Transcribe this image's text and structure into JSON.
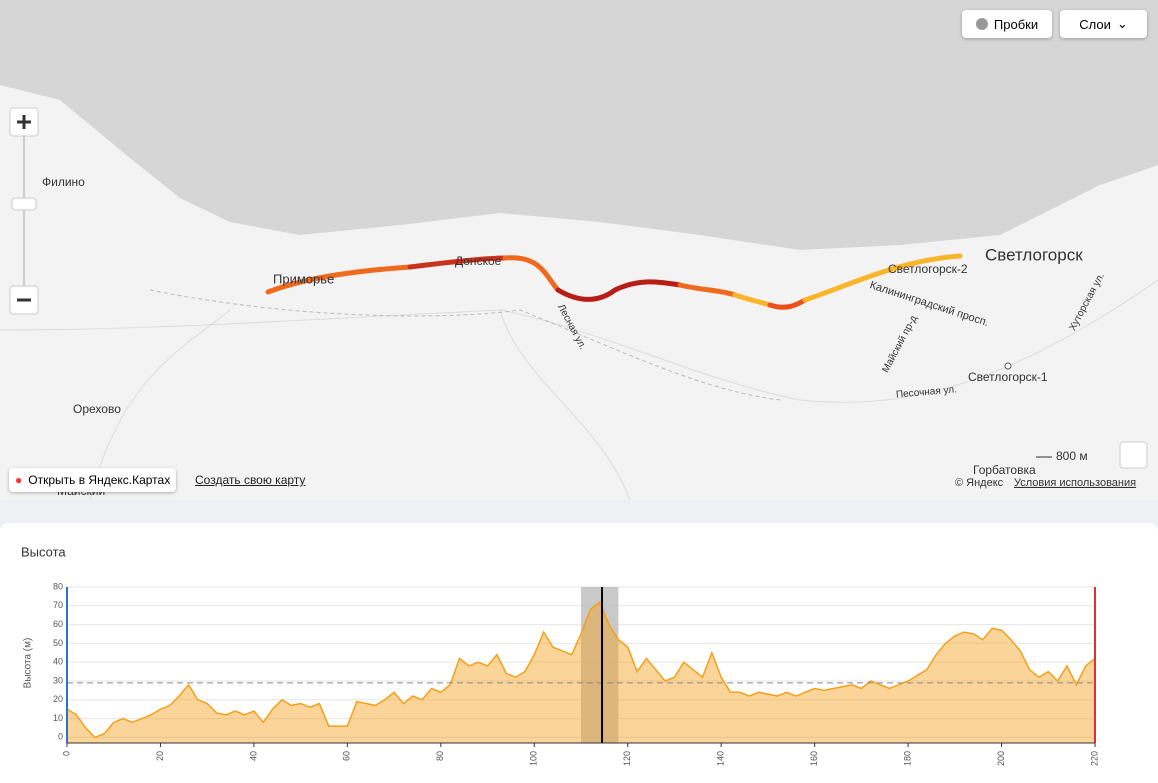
{
  "map": {
    "buttons": {
      "traffic": "Пробки",
      "layers": "Слои"
    },
    "labels": [
      "Филино",
      "Приморье",
      "Донское",
      "Орехово",
      "Майский",
      "Лесная ул.",
      "Светлогорск",
      "Светлогорск-2",
      "Калининградский просп.",
      "Майский пр-д",
      "Хуторская ул.",
      "Светлогорск-1",
      "Песочная ул.",
      "Горбатовка"
    ],
    "scale": "800 м",
    "open_link": "Открыть в Яндекс.Картах",
    "create_map": "Создать свою карту",
    "copyright": "© Яндекс",
    "terms": "Условия использования"
  },
  "chart_data": {
    "type": "area",
    "title": "Высота",
    "y_label": "Высота (м)",
    "x": [
      0,
      2,
      4,
      6,
      8,
      10,
      12,
      14,
      16,
      18,
      20,
      22,
      24,
      26,
      28,
      30,
      32,
      34,
      36,
      38,
      40,
      42,
      44,
      46,
      48,
      50,
      52,
      54,
      56,
      58,
      60,
      62,
      64,
      66,
      68,
      70,
      72,
      74,
      76,
      78,
      80,
      82,
      84,
      86,
      88,
      90,
      92,
      94,
      96,
      98,
      100,
      102,
      104,
      106,
      108,
      110,
      112,
      114,
      116,
      118,
      120,
      122,
      124,
      126,
      128,
      130,
      132,
      134,
      136,
      138,
      140,
      142,
      144,
      146,
      148,
      150,
      152,
      154,
      156,
      158,
      160,
      162,
      164,
      166,
      168,
      170,
      172,
      174,
      176,
      178,
      180,
      182,
      184,
      186,
      188,
      190,
      192,
      194,
      196,
      198,
      200,
      202,
      204,
      206,
      208,
      210,
      212,
      214,
      216,
      218,
      220
    ],
    "series": [
      {
        "name": "Высота",
        "color": "#f5a01a",
        "values": [
          15,
          12,
          5,
          0,
          2,
          8,
          10,
          8,
          10,
          12,
          15,
          17,
          22,
          28,
          20,
          18,
          13,
          12,
          14,
          12,
          14,
          8,
          15,
          20,
          17,
          18,
          16,
          18,
          6,
          6,
          6,
          19,
          18,
          17,
          20,
          24,
          18,
          22,
          20,
          26,
          24,
          28,
          42,
          38,
          40,
          38,
          44,
          34,
          32,
          35,
          44,
          56,
          48,
          46,
          44,
          55,
          68,
          72,
          60,
          52,
          48,
          35,
          42,
          36,
          30,
          32,
          40,
          36,
          32,
          45,
          32,
          24,
          24,
          22,
          24,
          23,
          22,
          24,
          22,
          24,
          26,
          25,
          26,
          27,
          28,
          26,
          30,
          28,
          26,
          28,
          30,
          33,
          36,
          44,
          50,
          54,
          56,
          55,
          52,
          58,
          57,
          52,
          46,
          36,
          32,
          35,
          30,
          38,
          28,
          38,
          42
        ]
      }
    ],
    "mean": 29,
    "highlight": [
      110,
      118
    ],
    "cursor": 114.5,
    "xlim": [
      0,
      220
    ],
    "ylim": [
      -3,
      80
    ],
    "xticks": [
      0,
      20,
      40,
      60,
      80,
      100,
      120,
      140,
      160,
      180,
      200,
      220
    ],
    "yticks": [
      0,
      10,
      20,
      30,
      40,
      50,
      60,
      70,
      80
    ],
    "grid": true
  }
}
